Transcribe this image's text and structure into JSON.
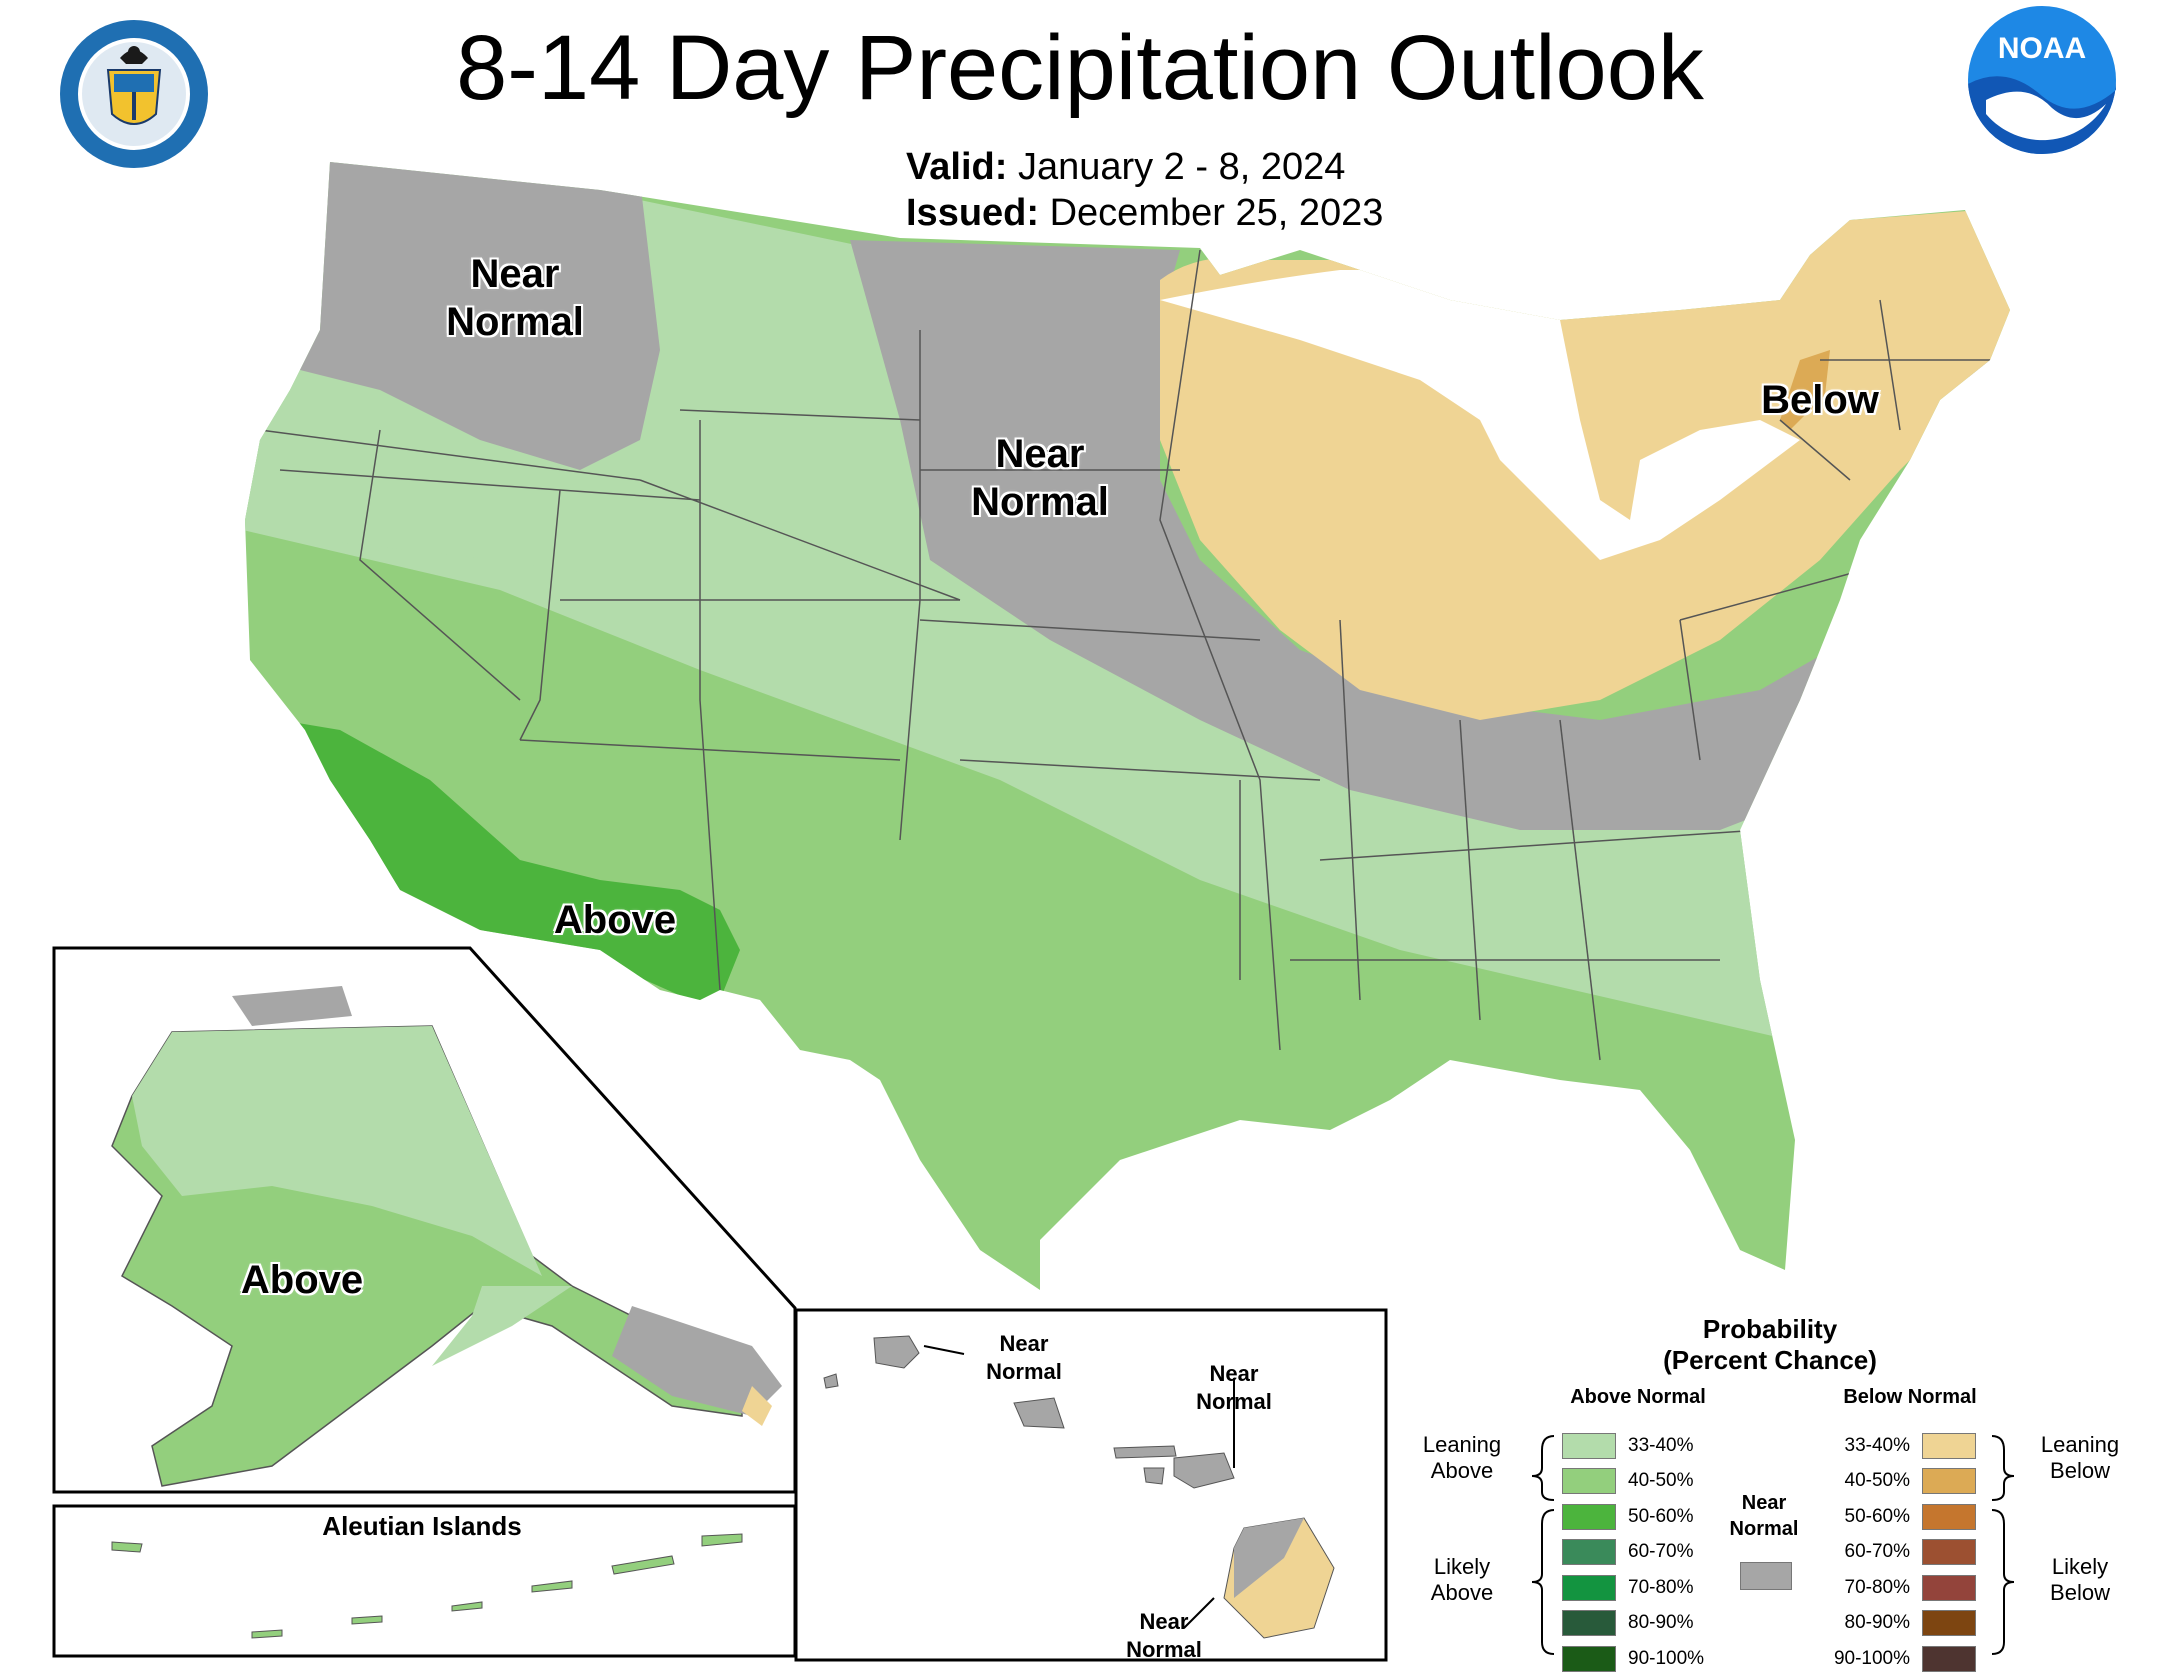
{
  "title": "8-14 Day Precipitation Outlook",
  "valid": {
    "label": "Valid:",
    "value": "January 2 - 8, 2024"
  },
  "issued": {
    "label": "Issued:",
    "value": "December 25, 2023"
  },
  "logos": {
    "left": "department-of-commerce-seal",
    "right": "noaa-logo",
    "noaa_text": "NOAA"
  },
  "map_labels": {
    "pacific_nw": "Near\nNormal",
    "northern_plains": "Near\nNormal",
    "northeast": "Below",
    "southwest": "Above",
    "alaska": "Above",
    "aleutian": "Aleutian Islands",
    "hawaii_kauai": "Near\nNormal",
    "hawaii_maui": "Near\nNormal",
    "hawaii_big_island": "Near\nNormal"
  },
  "legend": {
    "title": "Probability\n(Percent Chance)",
    "above_heading": "Above Normal",
    "below_heading": "Below Normal",
    "near_normal": "Near\nNormal",
    "leaning_above": "Leaning\nAbove",
    "likely_above": "Likely\nAbove",
    "leaning_below": "Leaning\nBelow",
    "likely_below": "Likely\nBelow",
    "above_bins": [
      {
        "label": "33-40%",
        "color": "#b3dcab"
      },
      {
        "label": "40-50%",
        "color": "#93cf7d"
      },
      {
        "label": "50-60%",
        "color": "#4cb43d"
      },
      {
        "label": "60-70%",
        "color": "#3a8a5a"
      },
      {
        "label": "70-80%",
        "color": "#139440"
      },
      {
        "label": "80-90%",
        "color": "#285a3a"
      },
      {
        "label": "90-100%",
        "color": "#1b5b17"
      }
    ],
    "below_bins": [
      {
        "label": "33-40%",
        "color": "#efd494"
      },
      {
        "label": "40-50%",
        "color": "#dcaa55"
      },
      {
        "label": "50-60%",
        "color": "#c5762e"
      },
      {
        "label": "60-70%",
        "color": "#9c5031"
      },
      {
        "label": "70-80%",
        "color": "#93443b"
      },
      {
        "label": "80-90%",
        "color": "#7d4511"
      },
      {
        "label": "90-100%",
        "color": "#4e3430"
      }
    ],
    "near_normal_color": "#a6a6a6"
  }
}
